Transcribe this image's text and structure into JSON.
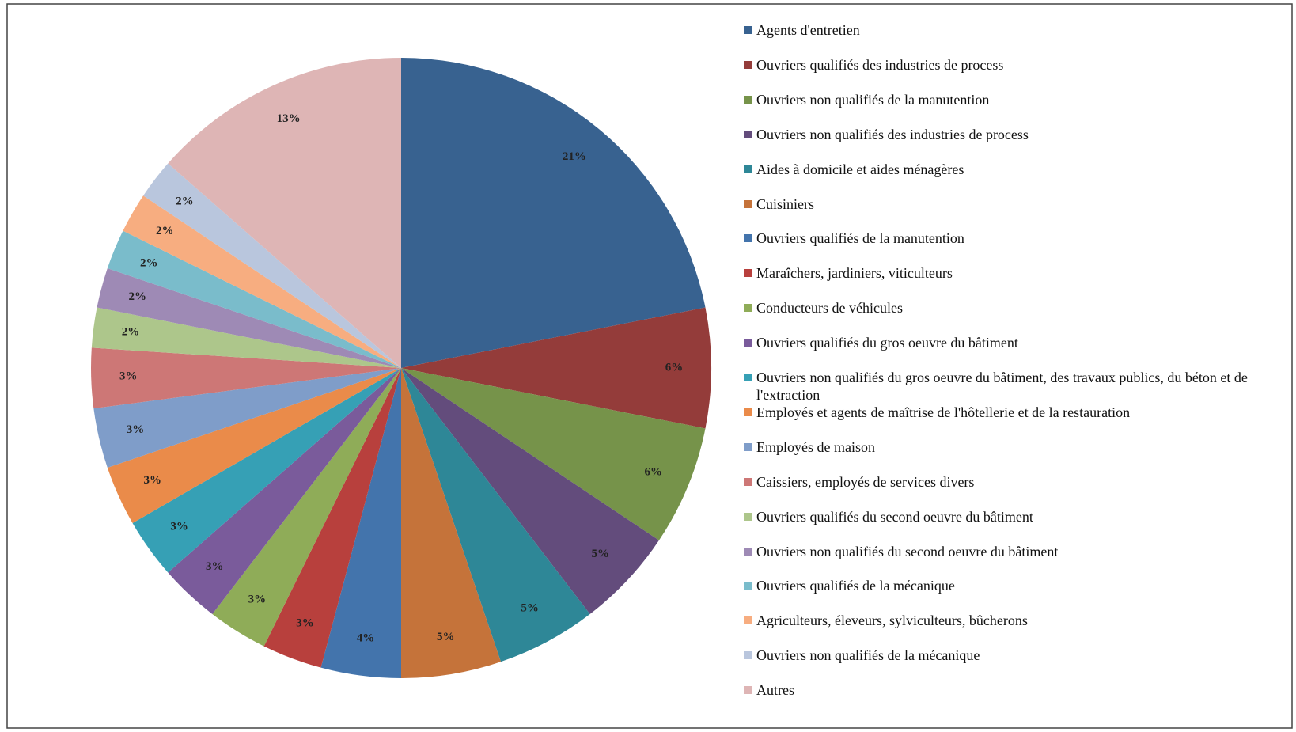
{
  "chart_data": {
    "type": "pie",
    "categories": [
      "Agents d'entretien",
      "Ouvriers qualifiés des industries de process",
      "Ouvriers non qualifiés de la manutention",
      "Ouvriers non qualifiés des industries de process",
      "Aides à domicile et aides ménagères",
      "Cuisiniers",
      "Ouvriers qualifiés de la manutention",
      "Maraîchers, jardiniers, viticulteurs",
      "Conducteurs de véhicules",
      "Ouvriers qualifiés du gros oeuvre du bâtiment",
      "Ouvriers non qualifiés du gros oeuvre du bâtiment, des travaux publics, du béton et de l'extraction",
      "Employés et agents de maîtrise de l'hôtellerie et de la restauration",
      "Employés de maison",
      "Caissiers, employés de services divers",
      "Ouvriers qualifiés du second oeuvre du bâtiment",
      "Ouvriers non qualifiés du second oeuvre du bâtiment",
      "Ouvriers qualifiés de la mécanique",
      "Agriculteurs, éleveurs, sylviculteurs, bûcherons",
      "Ouvriers non qualifiés de la mécanique",
      "Autres"
    ],
    "values": [
      21,
      6,
      6,
      5,
      5,
      5,
      4,
      3,
      3,
      3,
      3,
      3,
      3,
      3,
      2,
      2,
      2,
      2,
      2,
      13
    ],
    "value_labels": [
      "21%",
      "6%",
      "6%",
      "5%",
      "5%",
      "5%",
      "4%",
      "3%",
      "3%",
      "3%",
      "3%",
      "3%",
      "3%",
      "3%",
      "2%",
      "2%",
      "2%",
      "2%",
      "2%",
      "13%"
    ],
    "colors": [
      "#386290",
      "#943c3a",
      "#76934a",
      "#634c7c",
      "#2e8797",
      "#c5733a",
      "#4374ac",
      "#b8403d",
      "#8fac58",
      "#7a5b9b",
      "#36a0b5",
      "#ea8b4a",
      "#7f9dc9",
      "#cd7776",
      "#adc68b",
      "#9e8ab5",
      "#7abccb",
      "#f7ad80",
      "#b9c6dd",
      "#deb5b5"
    ],
    "legend": "right"
  }
}
